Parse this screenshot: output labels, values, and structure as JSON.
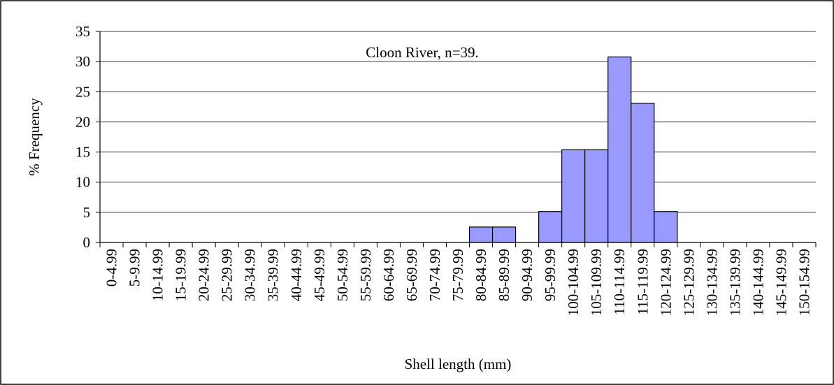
{
  "chart_data": {
    "type": "bar",
    "title": "Cloon River, n=39.",
    "x_label": "Shell length (mm)",
    "y_label": "% Frequency",
    "categories": [
      "0-4.99",
      "5-9.99",
      "10-14.99",
      "15-19.99",
      "20-24.99",
      "25-29.99",
      "30-34.99",
      "35-39.99",
      "40-44.99",
      "45-49.99",
      "50-54.99",
      "55-59.99",
      "60-64.99",
      "65-69.99",
      "70-74.99",
      "75-79.99",
      "80-84.99",
      "85-89.99",
      "90-94.99",
      "95-99.99",
      "100-104.99",
      "105-109.99",
      "110-114.99",
      "115-119.99",
      "120-124.99",
      "125-129.99",
      "130-134.99",
      "135-139.99",
      "140-144.99",
      "145-149.99",
      "150-154.99"
    ],
    "values": [
      0,
      0,
      0,
      0,
      0,
      0,
      0,
      0,
      0,
      0,
      0,
      0,
      0,
      0,
      0,
      0,
      2.56,
      2.56,
      0,
      5.13,
      15.38,
      15.38,
      30.77,
      23.08,
      5.13,
      0,
      0,
      0,
      0,
      0,
      0
    ],
    "color": "#9999ff",
    "ylim": [
      0,
      35
    ],
    "yticks": [
      0,
      5,
      10,
      15,
      20,
      25,
      30,
      35
    ],
    "grid": true
  }
}
